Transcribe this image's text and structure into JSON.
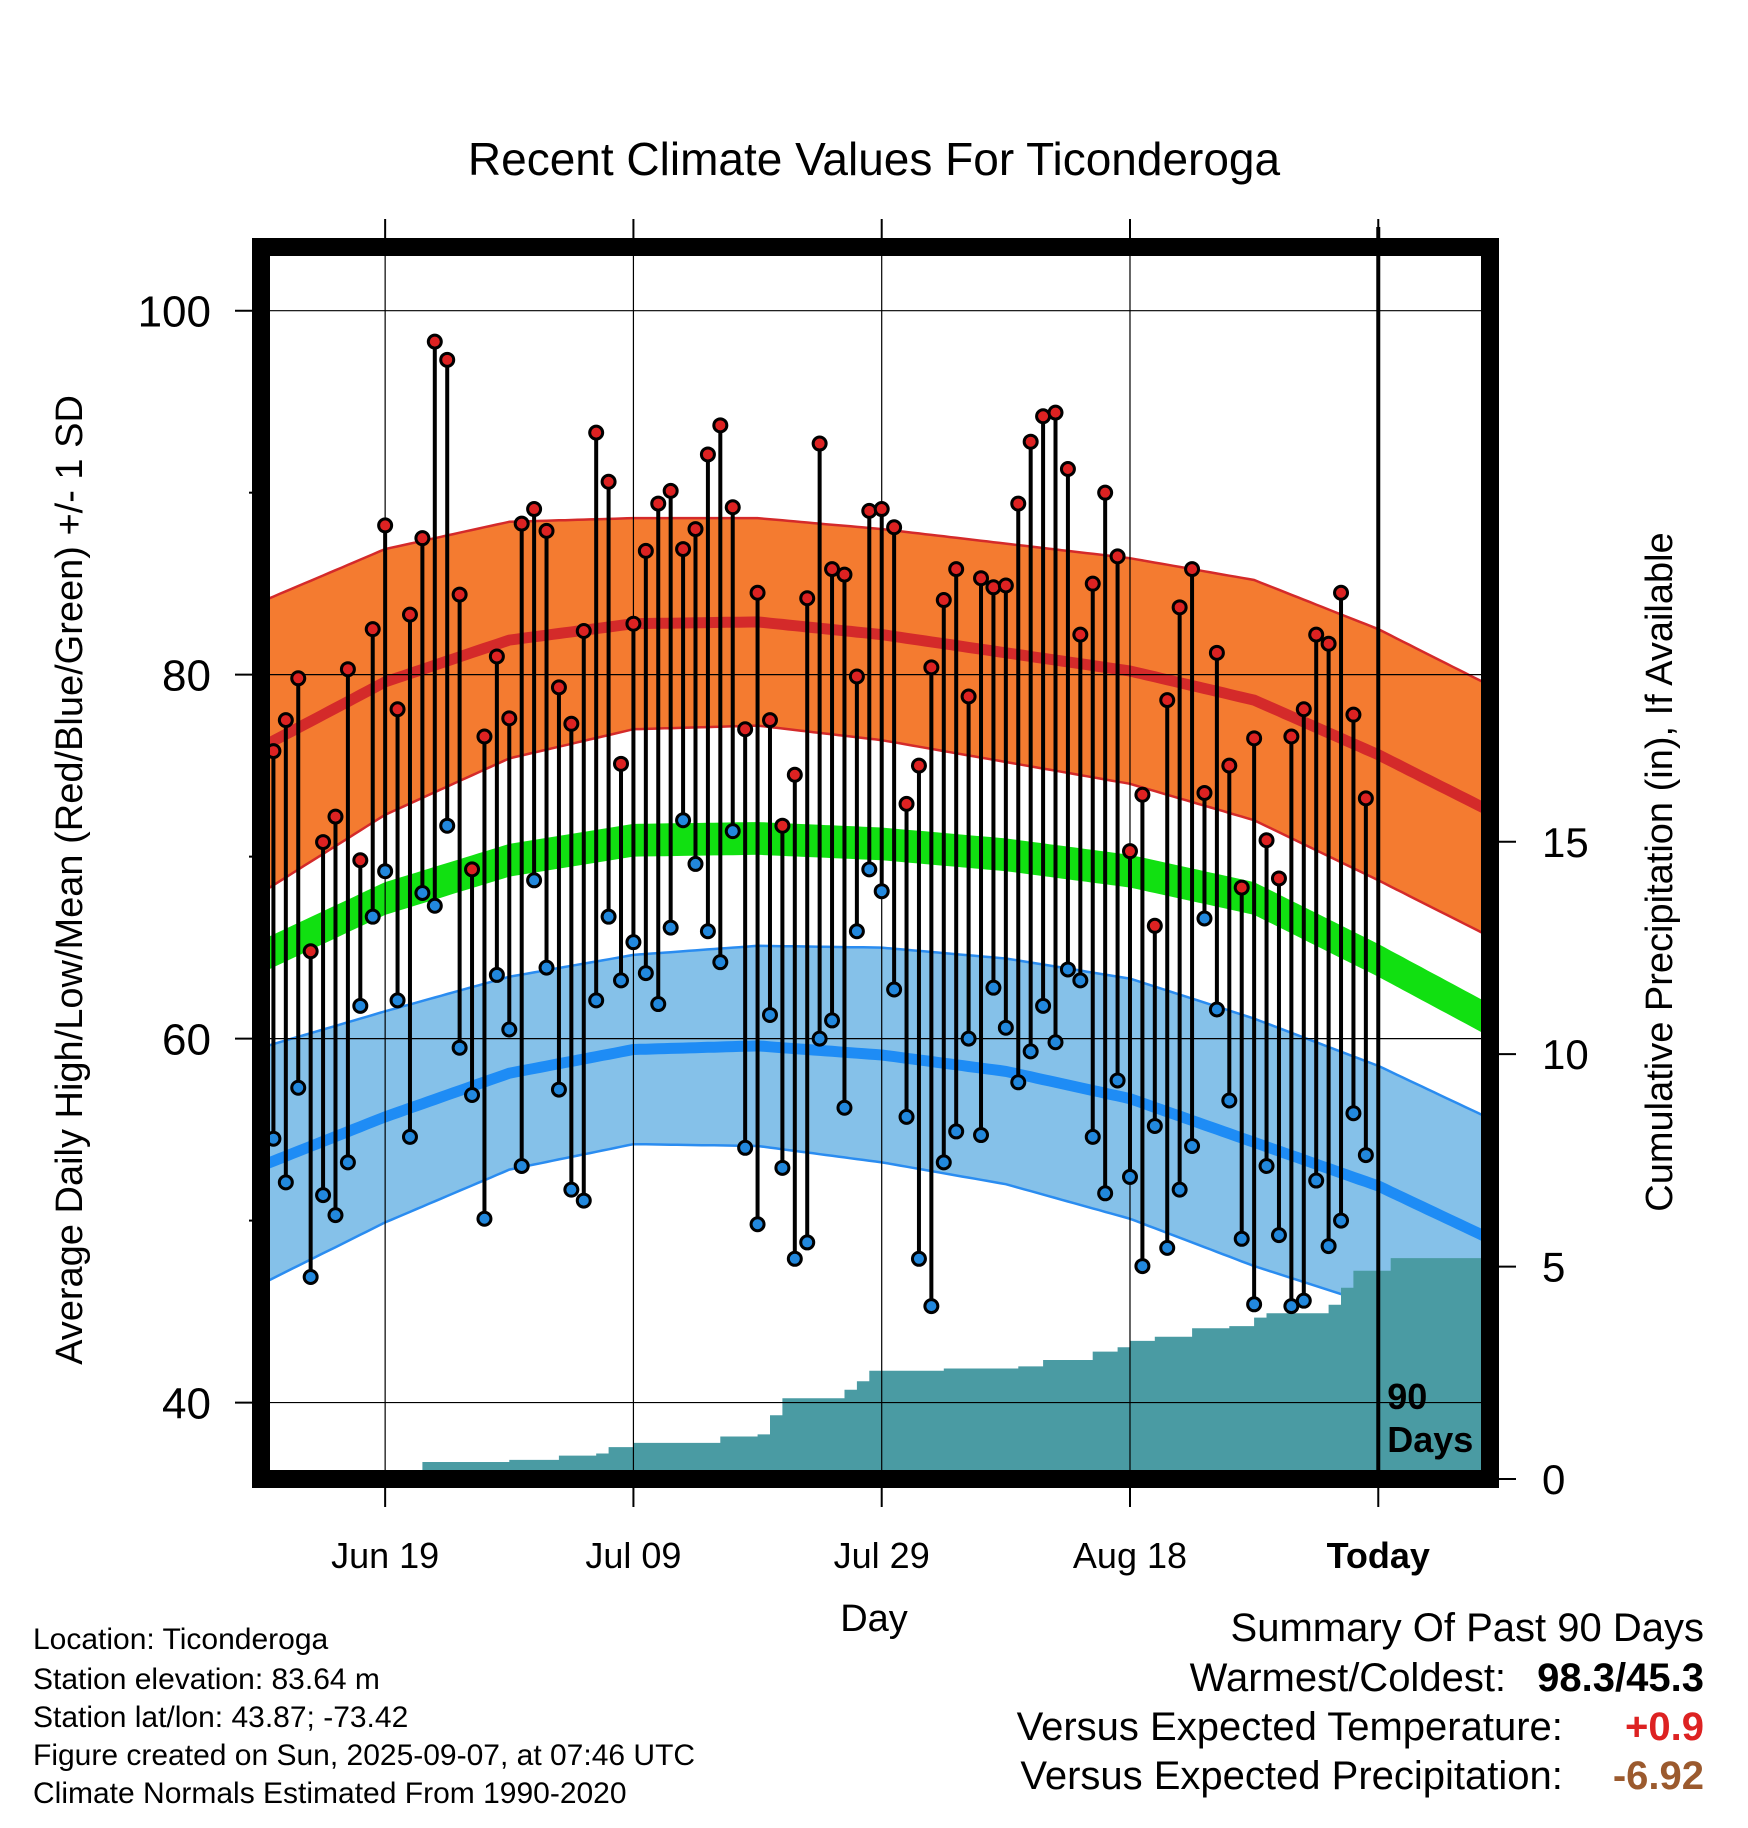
{
  "chart_data": {
    "type": "line",
    "title": "Recent Climate Values For Ticonderoga",
    "xlabel": "Day",
    "ylabel": "Average Daily High/Low/Mean (Red/Blue/Green) +/- 1 SD",
    "y2label": "Cumulative Precipitation (in), If Available",
    "ylim": [
      35.8,
      103.5
    ],
    "y2lim": [
      0,
      29
    ],
    "yticks": [
      40,
      60,
      80,
      100
    ],
    "y2ticks": [
      0,
      5,
      10,
      15
    ],
    "xlim": [
      0,
      99
    ],
    "xtick_positions": [
      10,
      30,
      50,
      70,
      90
    ],
    "xtick_labels": [
      "Jun 19",
      "Jul 09",
      "Jul 29",
      "Aug 18",
      "Today"
    ],
    "today_x": 90,
    "window_label_line1": "90",
    "window_label_line2": "Days",
    "normals": {
      "x": [
        0,
        10,
        20,
        30,
        40,
        50,
        60,
        70,
        80,
        90,
        99
      ],
      "high_mean": [
        76.0,
        79.6,
        81.9,
        82.8,
        82.9,
        82.2,
        81.2,
        80.2,
        78.6,
        75.6,
        72.5
      ],
      "high_sd": [
        8.0,
        7.3,
        6.5,
        5.8,
        5.7,
        5.8,
        6.0,
        6.2,
        6.6,
        6.9,
        6.9
      ],
      "mean_mean": [
        64.5,
        67.7,
        69.8,
        70.9,
        71.0,
        70.7,
        70.1,
        69.2,
        67.7,
        64.3,
        61.0
      ],
      "mean_width": 0.9,
      "low_mean": [
        53.0,
        55.7,
        58.1,
        59.4,
        59.6,
        59.1,
        58.2,
        56.7,
        54.3,
        51.9,
        49.0
      ],
      "low_sd": [
        6.5,
        5.8,
        5.3,
        5.2,
        5.5,
        5.9,
        6.2,
        6.6,
        6.8,
        6.6,
        6.6
      ]
    },
    "series": [
      {
        "name": "High",
        "color": "#dd2222",
        "values": [
          66.5,
          75.8,
          77.5,
          79.8,
          64.8,
          70.8,
          72.2,
          80.3,
          69.8,
          82.5,
          88.2,
          78.1,
          83.3,
          87.5,
          98.3,
          97.3,
          84.4,
          69.3,
          76.6,
          81.0,
          77.6,
          88.3,
          89.1,
          87.9,
          79.3,
          77.3,
          82.4,
          93.3,
          90.6,
          75.1,
          82.8,
          86.8,
          89.4,
          90.1,
          86.9,
          88.0,
          92.1,
          93.7,
          89.2,
          77.0,
          84.5,
          77.5,
          71.7,
          74.5,
          84.2,
          92.7,
          85.8,
          85.5,
          79.9,
          89.0,
          89.1,
          88.1,
          72.9,
          75.0,
          80.4,
          84.1,
          85.8,
          78.8,
          85.3,
          84.8,
          84.9,
          89.4,
          92.8,
          94.2,
          94.4,
          91.3,
          82.2,
          85.0,
          90.0,
          86.5,
          70.3,
          73.4,
          66.2,
          78.6,
          83.7,
          85.8,
          73.5,
          81.2,
          75.0,
          68.3,
          76.5,
          70.9,
          68.8,
          76.6,
          78.1,
          82.2,
          81.7,
          84.5,
          77.8,
          73.2
        ]
      },
      {
        "name": "Low",
        "color": "#2288dd",
        "values": [
          60.0,
          54.5,
          52.1,
          57.3,
          46.9,
          51.4,
          50.3,
          53.2,
          61.8,
          66.7,
          69.2,
          62.1,
          54.6,
          68.0,
          67.3,
          71.7,
          59.5,
          56.9,
          50.1,
          63.5,
          60.5,
          53.0,
          68.7,
          63.9,
          57.2,
          51.7,
          51.1,
          62.1,
          66.7,
          63.2,
          65.3,
          63.6,
          61.9,
          66.1,
          72.0,
          69.6,
          65.9,
          64.2,
          71.4,
          54.0,
          49.8,
          61.3,
          52.9,
          47.9,
          48.8,
          60.0,
          61.0,
          56.2,
          65.9,
          69.3,
          68.1,
          62.7,
          55.7,
          47.9,
          45.3,
          53.2,
          54.9,
          60.0,
          54.7,
          62.8,
          60.6,
          57.6,
          59.3,
          61.8,
          59.8,
          63.8,
          63.2,
          54.6,
          51.5,
          57.7,
          52.4,
          47.5,
          55.2,
          48.5,
          51.7,
          54.1,
          66.6,
          61.6,
          56.6,
          49.0,
          45.4,
          53.0,
          49.2,
          45.3,
          45.6,
          52.2,
          48.6,
          50.0,
          55.9,
          53.6
        ]
      }
    ],
    "precip_cumulative": {
      "x": [
        0,
        9,
        10,
        12,
        13,
        20,
        24,
        27,
        28,
        30,
        37,
        40,
        41,
        42,
        47,
        48,
        49,
        55,
        61,
        63,
        67,
        69,
        70,
        72,
        75,
        78,
        80,
        81,
        86,
        87,
        88,
        91,
        99
      ],
      "values": [
        0,
        0,
        0.1,
        0.2,
        0.4,
        0.45,
        0.55,
        0.6,
        0.75,
        0.85,
        1.0,
        1.05,
        1.5,
        1.9,
        2.1,
        2.3,
        2.55,
        2.6,
        2.65,
        2.8,
        3.0,
        3.1,
        3.25,
        3.35,
        3.55,
        3.6,
        3.8,
        3.9,
        4.1,
        4.5,
        4.9,
        5.2,
        5.2
      ]
    }
  },
  "info": {
    "location": "Location: Ticonderoga",
    "elevation": "Station elevation: 83.64 m",
    "latlon": "Station lat/lon: 43.87; -73.42",
    "created": "Figure created on Sun, 2025-09-07, at 07:46 UTC",
    "normals": "Climate Normals Estimated From 1990-2020"
  },
  "summary": {
    "title": "Summary Of Past 90 Days",
    "warm_cold_label": "Warmest/Coldest:",
    "warm_cold_value": "98.3/45.3",
    "temp_label": "Versus Expected Temperature:",
    "temp_value": "+0.9",
    "temp_color": "#dd2222",
    "precip_label": "Versus Expected Precipitation:",
    "precip_value": "-6.92",
    "precip_color": "#9b5a2e"
  }
}
